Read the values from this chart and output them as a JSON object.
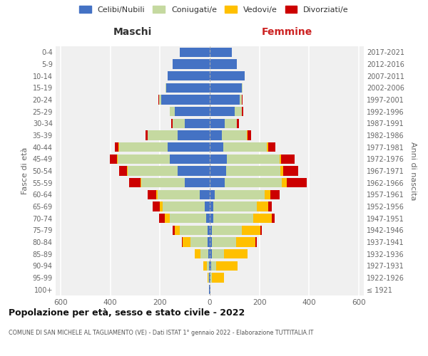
{
  "age_groups": [
    "100+",
    "95-99",
    "90-94",
    "85-89",
    "80-84",
    "75-79",
    "70-74",
    "65-69",
    "60-64",
    "55-59",
    "50-54",
    "45-49",
    "40-44",
    "35-39",
    "30-34",
    "25-29",
    "20-24",
    "15-19",
    "10-14",
    "5-9",
    "0-4"
  ],
  "birth_years": [
    "≤ 1921",
    "1922-1926",
    "1927-1931",
    "1932-1936",
    "1937-1941",
    "1942-1946",
    "1947-1951",
    "1952-1956",
    "1957-1961",
    "1962-1966",
    "1967-1971",
    "1972-1976",
    "1977-1981",
    "1982-1986",
    "1987-1991",
    "1992-1996",
    "1997-2001",
    "2002-2006",
    "2007-2011",
    "2012-2016",
    "2017-2021"
  ],
  "colors": {
    "celibi": "#4472c4",
    "coniugati": "#c5d9a0",
    "vedovi": "#ffc000",
    "divorziati": "#cc0000"
  },
  "maschi": {
    "celibi": [
      2,
      3,
      4,
      6,
      8,
      10,
      15,
      20,
      40,
      100,
      130,
      160,
      170,
      130,
      100,
      140,
      195,
      175,
      170,
      150,
      120
    ],
    "coniugati": [
      0,
      2,
      8,
      30,
      70,
      110,
      145,
      170,
      170,
      175,
      200,
      210,
      195,
      120,
      50,
      20,
      10,
      3,
      0,
      0,
      0
    ],
    "vedovi": [
      0,
      5,
      15,
      25,
      30,
      20,
      20,
      10,
      5,
      4,
      4,
      3,
      2,
      1,
      0,
      0,
      0,
      0,
      0,
      0,
      0
    ],
    "divorziati": [
      0,
      0,
      0,
      0,
      5,
      10,
      25,
      30,
      35,
      45,
      30,
      30,
      15,
      8,
      5,
      2,
      2,
      0,
      0,
      0,
      0
    ]
  },
  "femmine": {
    "nubili": [
      2,
      3,
      6,
      8,
      10,
      10,
      15,
      15,
      20,
      60,
      65,
      70,
      55,
      50,
      60,
      100,
      120,
      130,
      140,
      110,
      90
    ],
    "coniugate": [
      0,
      5,
      20,
      50,
      95,
      120,
      160,
      175,
      200,
      230,
      220,
      210,
      175,
      100,
      50,
      30,
      10,
      3,
      0,
      0,
      0
    ],
    "vedove": [
      0,
      50,
      85,
      95,
      80,
      75,
      75,
      45,
      25,
      20,
      10,
      8,
      5,
      2,
      0,
      0,
      0,
      0,
      0,
      0,
      0
    ],
    "divorziate": [
      0,
      0,
      0,
      0,
      5,
      5,
      10,
      15,
      35,
      80,
      60,
      55,
      30,
      15,
      8,
      5,
      3,
      0,
      0,
      0,
      0
    ]
  },
  "xlim": 620,
  "title": "Popolazione per età, sesso e stato civile - 2022",
  "subtitle": "COMUNE DI SAN MICHELE AL TAGLIAMENTO (VE) - Dati ISTAT 1° gennaio 2022 - Elaborazione TUTTITALIA.IT",
  "ylabel_left": "Fasce di età",
  "ylabel_right": "Anni di nascita",
  "xlabel_left": "Maschi",
  "xlabel_right": "Femmine",
  "bg_color": "#f0f0f0",
  "maschi_color": "#333333",
  "femmine_color": "#cc2222"
}
